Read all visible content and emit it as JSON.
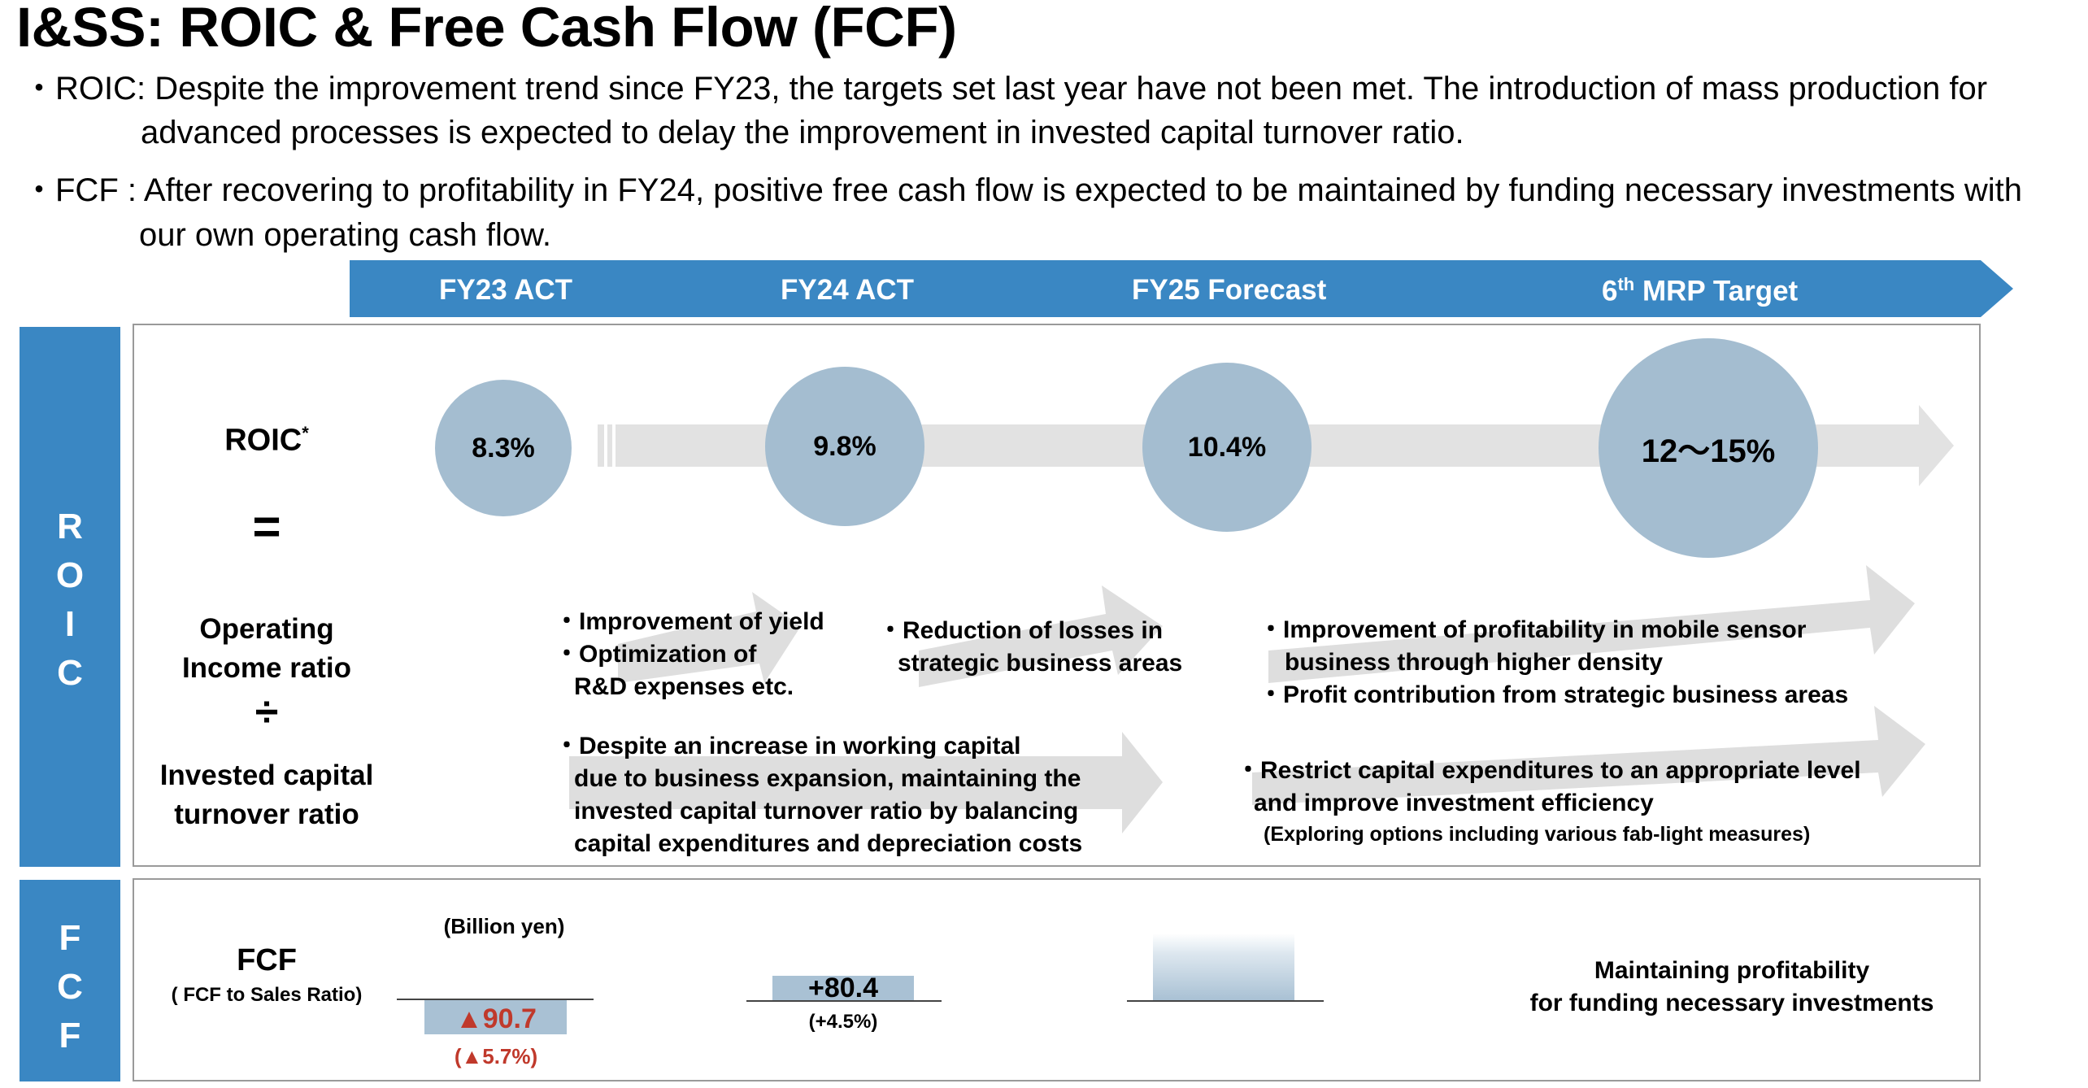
{
  "title": "I&SS: ROIC & Free Cash Flow (FCF)",
  "bullets": {
    "roic_label": "ROIC:",
    "roic_line1": "Despite the improvement trend since FY23, the targets set last year have not been met. The introduction of mass production for",
    "roic_line2": "advanced processes is expected to delay the improvement in invested capital turnover ratio.",
    "fcf_label": "FCF  :",
    "fcf_line1": "After recovering to profitability in FY24, positive free cash flow is expected to be maintained by funding necessary investments with",
    "fcf_line2": "our own operating cash flow."
  },
  "periods": {
    "fy23": "FY23 ACT",
    "fy24": "FY24 ACT",
    "fy25": "FY25 Forecast",
    "mrp_prefix": "6",
    "mrp_sup": "th",
    "mrp_suffix": " MRP Target"
  },
  "roic": {
    "side_label": [
      "R",
      "O",
      "I",
      "C"
    ],
    "formula_top": "ROIC",
    "formula_star": "*",
    "equals": "=",
    "op_income_1": "Operating",
    "op_income_2": "Income ratio",
    "divide": "÷",
    "inv_cap_1": "Invested capital",
    "inv_cap_2": "turnover ratio",
    "values": {
      "fy23": "8.3%",
      "fy24": "9.8%",
      "fy25": "10.4%",
      "mrp": "12〜15%"
    },
    "bullets_a": [
      "Improvement of yield",
      "Optimization of",
      "R&D expenses etc."
    ],
    "bullets_b": [
      "Reduction of losses in",
      "strategic business areas"
    ],
    "bullets_c": [
      "Improvement of profitability in mobile sensor",
      "business through higher density",
      "Profit contribution from strategic business areas"
    ],
    "bullets_d": [
      "Despite an increase in working capital",
      "due to  business expansion, maintaining the",
      "invested  capital turnover ratio by balancing",
      "capital expenditures and depreciation costs"
    ],
    "bullets_e": [
      "Restrict capital expenditures to an appropriate level",
      "and improve investment efficiency",
      "(Exploring options including various fab-light measures)"
    ]
  },
  "fcf": {
    "side_label": [
      "F",
      "C",
      "F"
    ],
    "label": "FCF",
    "sub_label": "( FCF to Sales Ratio)",
    "unit": "(Billion yen)",
    "fy23_value": "▲90.7",
    "fy23_ratio": "(▲5.7%)",
    "fy24_value": "+80.4",
    "fy24_ratio": "(+4.5%)",
    "target_line1": "Maintaining profitability",
    "target_line2": "for funding necessary investments",
    "negative_color": "#c0392b"
  }
}
